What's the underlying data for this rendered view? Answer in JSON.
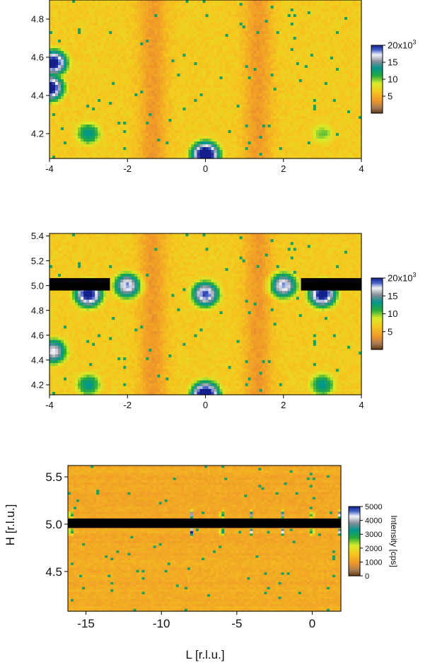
{
  "chart_data": [
    {
      "type": "heatmap",
      "title": "",
      "xlabel": "",
      "ylabel": "",
      "xlim": [
        -4,
        4
      ],
      "ylim": [
        4.07,
        4.9
      ],
      "x_ticks": [
        -4,
        -2,
        0,
        2,
        4
      ],
      "x_tick_labels": [
        "-4",
        "-2",
        "0",
        "2",
        "4"
      ],
      "y_ticks": [
        4.2,
        4.4,
        4.6,
        4.8
      ],
      "y_tick_labels": [
        "4.2",
        "4.4",
        "4.6",
        "4.8"
      ],
      "colorbar": {
        "range": [
          0,
          20000
        ],
        "ticks": [
          5000,
          10000,
          15000,
          20000
        ],
        "tick_labels": [
          "5",
          "10",
          "15",
          "20x10"
        ],
        "exponent": "3",
        "label": ""
      },
      "peaks": [
        {
          "x": 0,
          "y": 4.09,
          "intensity": 20000
        },
        {
          "x": -4,
          "y": 4.44,
          "intensity": 19000
        },
        {
          "x": -3.9,
          "y": 4.57,
          "intensity": 18000
        },
        {
          "x": -3,
          "y": 4.2,
          "intensity": 10000
        },
        {
          "x": 3,
          "y": 4.2,
          "intensity": 7000
        }
      ],
      "masked_regions": []
    },
    {
      "type": "heatmap",
      "title": "",
      "xlabel": "",
      "ylabel": "",
      "xlim": [
        -4,
        4
      ],
      "ylim": [
        4.12,
        5.42
      ],
      "x_ticks": [
        -4,
        -2,
        0,
        2,
        4
      ],
      "x_tick_labels": [
        "-4",
        "-2",
        "0",
        "2",
        "4"
      ],
      "y_ticks": [
        4.2,
        4.4,
        4.6,
        4.8,
        5.0,
        5.2,
        5.4
      ],
      "y_tick_labels": [
        "4.2",
        "4.4",
        "4.6",
        "4.8",
        "5.0",
        "5.2",
        "5.4"
      ],
      "colorbar": {
        "range": [
          0,
          20000
        ],
        "ticks": [
          5000,
          10000,
          15000,
          20000
        ],
        "tick_labels": [
          "5",
          "10",
          "15",
          "20x10"
        ],
        "exponent": "3",
        "label": ""
      },
      "peaks": [
        {
          "x": 0,
          "y": 4.12,
          "intensity": 20000
        },
        {
          "x": -3,
          "y": 4.93,
          "intensity": 18000
        },
        {
          "x": 0,
          "y": 4.93,
          "intensity": 16000
        },
        {
          "x": 3,
          "y": 4.93,
          "intensity": 18000
        },
        {
          "x": -2,
          "y": 5.0,
          "intensity": 15000
        },
        {
          "x": 2,
          "y": 5.0,
          "intensity": 15000
        },
        {
          "x": -3.9,
          "y": 4.47,
          "intensity": 14000
        },
        {
          "x": -3,
          "y": 4.2,
          "intensity": 10000
        },
        {
          "x": 3,
          "y": 4.2,
          "intensity": 10000
        }
      ],
      "masked_regions": [
        {
          "x": [
            -4,
            -2.45
          ],
          "y": [
            4.96,
            5.06
          ]
        },
        {
          "x": [
            2.45,
            4
          ],
          "y": [
            4.96,
            5.06
          ]
        }
      ]
    },
    {
      "type": "heatmap",
      "title": "",
      "xlabel": "L [r.l.u.]",
      "ylabel": "H [r.l.u.]",
      "xlim": [
        -16.2,
        1.9
      ],
      "ylim": [
        4.08,
        5.62
      ],
      "x_ticks": [
        -15,
        -10,
        -5,
        0
      ],
      "x_tick_labels": [
        "-15",
        "-10",
        "-5",
        "0"
      ],
      "y_ticks": [
        4.5,
        5.0,
        5.5
      ],
      "y_tick_labels": [
        "4.5",
        "5.0",
        "5.5"
      ],
      "colorbar": {
        "range": [
          0,
          5000
        ],
        "ticks": [
          0,
          1000,
          2000,
          3000,
          4000,
          5000
        ],
        "tick_labels": [
          "0",
          "1000",
          "2000",
          "3000",
          "4000",
          "5000"
        ],
        "exponent": "",
        "label": "Intensity [cps]"
      },
      "peaks": [
        {
          "x": -8,
          "y": 4.92,
          "intensity": 4500
        },
        {
          "x": -6,
          "y": 4.92,
          "intensity": 4500
        },
        {
          "x": -4,
          "y": 4.92,
          "intensity": 4200
        },
        {
          "x": -2,
          "y": 4.92,
          "intensity": 4200
        },
        {
          "x": 0,
          "y": 4.92,
          "intensity": 4000
        },
        {
          "x": -8,
          "y": 5.1,
          "intensity": 4000
        },
        {
          "x": -6,
          "y": 5.1,
          "intensity": 4000
        },
        {
          "x": -4,
          "y": 5.1,
          "intensity": 3800
        },
        {
          "x": -2,
          "y": 5.1,
          "intensity": 3800
        },
        {
          "x": 0,
          "y": 5.1,
          "intensity": 3600
        },
        {
          "x": -16,
          "y": 5.1,
          "intensity": 4200
        },
        {
          "x": -16,
          "y": 4.92,
          "intensity": 4200
        },
        {
          "x": 1.8,
          "y": 5.1,
          "intensity": 3800
        },
        {
          "x": 1.8,
          "y": 4.92,
          "intensity": 3800
        }
      ],
      "masked_regions": [
        {
          "x": [
            -16.2,
            1.9
          ],
          "y": [
            4.96,
            5.06
          ]
        }
      ]
    }
  ]
}
